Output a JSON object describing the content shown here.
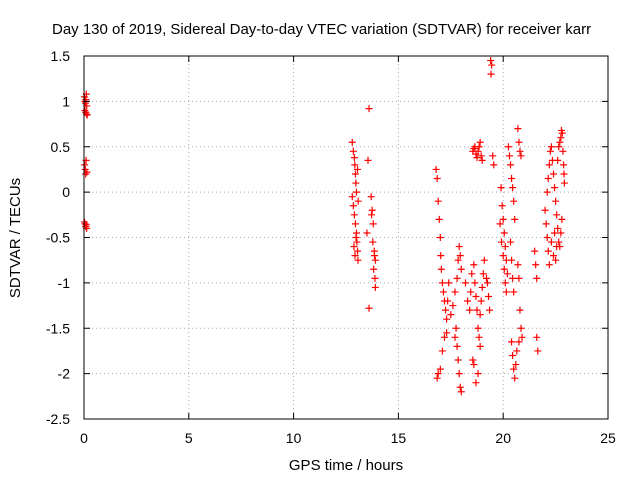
{
  "chart_data": {
    "type": "scatter",
    "title": "Day 130 of 2019, Sidereal Day-to-day VTEC variation (SDTVAR) for receiver karr",
    "xlabel": "GPS time / hours",
    "ylabel": "SDTVAR / TECUs",
    "xlim": [
      0,
      25
    ],
    "ylim": [
      -2.5,
      1.5
    ],
    "xticks": [
      0,
      5,
      10,
      15,
      20,
      25
    ],
    "yticks": [
      -2.5,
      -2,
      -1.5,
      -1,
      -0.5,
      0,
      0.5,
      1,
      1.5
    ],
    "grid": true,
    "marker": "+",
    "color": "#ff0000",
    "series": [
      {
        "name": "SDTVAR",
        "points": [
          [
            0.02,
            1.05
          ],
          [
            0.05,
            1.0
          ],
          [
            0.07,
            0.98
          ],
          [
            0.09,
            1.02
          ],
          [
            0.11,
            1.08
          ],
          [
            0.13,
            0.95
          ],
          [
            0.04,
            0.9
          ],
          [
            0.08,
            0.88
          ],
          [
            0.12,
            0.86
          ],
          [
            0.15,
            0.85
          ],
          [
            0.03,
            0.3
          ],
          [
            0.06,
            0.25
          ],
          [
            0.08,
            0.2
          ],
          [
            0.1,
            0.35
          ],
          [
            0.14,
            0.22
          ],
          [
            0.05,
            -0.35
          ],
          [
            0.08,
            -0.38
          ],
          [
            0.11,
            -0.36
          ],
          [
            0.13,
            -0.4
          ],
          [
            0.02,
            -0.33
          ],
          [
            12.8,
            0.55
          ],
          [
            12.85,
            0.45
          ],
          [
            12.9,
            0.38
          ],
          [
            12.92,
            0.3
          ],
          [
            12.95,
            0.2
          ],
          [
            12.97,
            0.1
          ],
          [
            13.0,
            0.0
          ],
          [
            12.8,
            -0.05
          ],
          [
            12.85,
            -0.15
          ],
          [
            12.9,
            -0.25
          ],
          [
            12.95,
            -0.35
          ],
          [
            13.0,
            -0.45
          ],
          [
            13.02,
            -0.55
          ],
          [
            13.05,
            -0.65
          ],
          [
            13.07,
            -0.75
          ],
          [
            12.88,
            -0.6
          ],
          [
            12.93,
            -0.7
          ],
          [
            13.05,
            0.25
          ],
          [
            13.08,
            -0.1
          ],
          [
            12.98,
            -0.5
          ],
          [
            13.6,
            0.92
          ],
          [
            13.55,
            0.35
          ],
          [
            13.5,
            -0.45
          ],
          [
            13.6,
            -1.28
          ],
          [
            13.7,
            -0.05
          ],
          [
            13.75,
            -0.2
          ],
          [
            13.8,
            -0.35
          ],
          [
            13.78,
            -0.55
          ],
          [
            13.85,
            -0.65
          ],
          [
            13.9,
            -0.75
          ],
          [
            13.82,
            -0.85
          ],
          [
            13.88,
            -0.95
          ],
          [
            13.9,
            -1.05
          ],
          [
            13.72,
            -0.25
          ],
          [
            13.86,
            -0.7
          ],
          [
            16.8,
            0.25
          ],
          [
            16.85,
            0.15
          ],
          [
            16.9,
            -0.1
          ],
          [
            16.95,
            -0.3
          ],
          [
            17.0,
            -0.5
          ],
          [
            17.02,
            -0.7
          ],
          [
            17.05,
            -0.85
          ],
          [
            17.1,
            -1.0
          ],
          [
            17.15,
            -1.1
          ],
          [
            17.2,
            -1.2
          ],
          [
            17.25,
            -1.3
          ],
          [
            17.3,
            -1.4
          ],
          [
            17.35,
            -1.2
          ],
          [
            17.4,
            -1.0
          ],
          [
            16.85,
            -2.05
          ],
          [
            16.9,
            -2.0
          ],
          [
            17.0,
            -1.95
          ],
          [
            17.1,
            -1.75
          ],
          [
            17.2,
            -1.6
          ],
          [
            17.3,
            -1.55
          ],
          [
            17.5,
            -1.35
          ],
          [
            17.6,
            -1.25
          ],
          [
            17.7,
            -1.1
          ],
          [
            17.8,
            -0.95
          ],
          [
            17.85,
            -0.75
          ],
          [
            17.9,
            -0.6
          ],
          [
            17.95,
            -0.7
          ],
          [
            18.0,
            -0.85
          ],
          [
            17.75,
            -1.5
          ],
          [
            17.8,
            -1.7
          ],
          [
            17.85,
            -1.85
          ],
          [
            17.9,
            -2.0
          ],
          [
            17.95,
            -2.15
          ],
          [
            18.0,
            -2.2
          ],
          [
            17.7,
            -1.6
          ],
          [
            18.2,
            -1.0
          ],
          [
            18.3,
            -1.2
          ],
          [
            18.4,
            -1.3
          ],
          [
            18.45,
            -1.1
          ],
          [
            18.5,
            -0.9
          ],
          [
            18.55,
            0.45
          ],
          [
            18.6,
            0.48
          ],
          [
            18.65,
            0.5
          ],
          [
            18.7,
            0.42
          ],
          [
            18.75,
            0.38
          ],
          [
            18.8,
            0.45
          ],
          [
            18.85,
            0.5
          ],
          [
            18.9,
            0.55
          ],
          [
            18.95,
            0.4
          ],
          [
            19.0,
            0.35
          ],
          [
            18.6,
            -0.8
          ],
          [
            18.65,
            -1.0
          ],
          [
            18.7,
            -1.15
          ],
          [
            18.75,
            -1.3
          ],
          [
            18.8,
            -1.5
          ],
          [
            18.85,
            -1.6
          ],
          [
            18.9,
            -1.35
          ],
          [
            18.95,
            -1.2
          ],
          [
            19.0,
            -1.05
          ],
          [
            19.05,
            -0.9
          ],
          [
            18.55,
            -1.85
          ],
          [
            18.6,
            -1.9
          ],
          [
            18.7,
            -2.1
          ],
          [
            18.8,
            -2.0
          ],
          [
            18.9,
            -1.7
          ],
          [
            19.1,
            -0.75
          ],
          [
            19.2,
            -0.95
          ],
          [
            19.3,
            -1.15
          ],
          [
            19.35,
            -1.3
          ],
          [
            19.25,
            -1.0
          ],
          [
            19.4,
            1.45
          ],
          [
            19.45,
            1.4
          ],
          [
            19.42,
            1.3
          ],
          [
            19.5,
            0.4
          ],
          [
            19.55,
            0.3
          ],
          [
            19.9,
            0.05
          ],
          [
            19.95,
            -0.15
          ],
          [
            20.0,
            -0.3
          ],
          [
            20.05,
            -0.45
          ],
          [
            20.1,
            -0.6
          ],
          [
            20.15,
            -0.75
          ],
          [
            20.2,
            -0.9
          ],
          [
            19.85,
            -0.35
          ],
          [
            19.92,
            -0.55
          ],
          [
            20.0,
            -0.7
          ],
          [
            20.05,
            -0.85
          ],
          [
            20.1,
            -1.0
          ],
          [
            20.15,
            -1.1
          ],
          [
            20.25,
            0.5
          ],
          [
            20.3,
            0.4
          ],
          [
            20.35,
            0.3
          ],
          [
            20.4,
            0.15
          ],
          [
            20.45,
            0.05
          ],
          [
            20.5,
            -0.1
          ],
          [
            20.55,
            -0.3
          ],
          [
            20.35,
            -0.55
          ],
          [
            20.4,
            -0.75
          ],
          [
            20.45,
            -0.95
          ],
          [
            20.5,
            -1.1
          ],
          [
            20.4,
            -1.65
          ],
          [
            20.45,
            -1.8
          ],
          [
            20.5,
            -1.95
          ],
          [
            20.55,
            -2.05
          ],
          [
            20.6,
            -1.9
          ],
          [
            20.65,
            -1.75
          ],
          [
            20.7,
            0.7
          ],
          [
            20.75,
            0.55
          ],
          [
            20.8,
            0.45
          ],
          [
            20.85,
            0.4
          ],
          [
            20.7,
            -0.8
          ],
          [
            20.75,
            -0.95
          ],
          [
            20.8,
            -1.3
          ],
          [
            20.85,
            -1.5
          ],
          [
            20.9,
            -1.6
          ],
          [
            20.75,
            -1.65
          ],
          [
            21.6,
            -1.6
          ],
          [
            21.65,
            -1.75
          ],
          [
            21.5,
            -0.65
          ],
          [
            21.55,
            -0.8
          ],
          [
            21.6,
            -0.95
          ],
          [
            22.0,
            -0.2
          ],
          [
            22.05,
            -0.35
          ],
          [
            22.1,
            -0.5
          ],
          [
            22.15,
            -0.65
          ],
          [
            22.2,
            -0.8
          ],
          [
            22.1,
            0.0
          ],
          [
            22.15,
            0.15
          ],
          [
            22.2,
            0.3
          ],
          [
            22.25,
            0.45
          ],
          [
            22.3,
            0.5
          ],
          [
            22.35,
            0.35
          ],
          [
            22.4,
            0.2
          ],
          [
            22.45,
            0.05
          ],
          [
            22.5,
            -0.1
          ],
          [
            22.55,
            -0.25
          ],
          [
            22.6,
            -0.4
          ],
          [
            22.65,
            -0.55
          ],
          [
            22.7,
            -0.6
          ],
          [
            22.75,
            -0.45
          ],
          [
            22.8,
            -0.3
          ],
          [
            22.6,
            0.35
          ],
          [
            22.65,
            0.5
          ],
          [
            22.7,
            0.55
          ],
          [
            22.75,
            0.6
          ],
          [
            22.78,
            0.68
          ],
          [
            22.82,
            0.65
          ],
          [
            22.85,
            0.45
          ],
          [
            22.88,
            0.3
          ],
          [
            22.9,
            0.2
          ],
          [
            22.92,
            0.1
          ],
          [
            22.3,
            -0.55
          ],
          [
            22.4,
            -0.7
          ],
          [
            22.5,
            -0.75
          ],
          [
            22.55,
            -0.6
          ],
          [
            22.45,
            -0.45
          ]
        ]
      }
    ]
  }
}
